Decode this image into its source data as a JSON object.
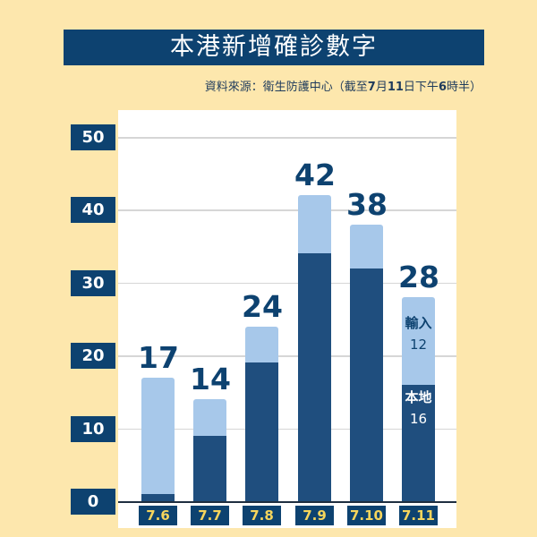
{
  "header": {
    "title": "本港新增確診數字",
    "source_prefix": "資料來源：衛生防護中心（截至",
    "source_month": "7",
    "source_m": "月",
    "source_day": "11",
    "source_d": "日下午",
    "source_hour": "6",
    "source_suffix": "時半）"
  },
  "colors": {
    "local": "#1f4e7e",
    "imported": "#a7c8ea",
    "title_bg": "#0d4270",
    "background": "#fde7ad",
    "tick_text": "#f6d55c"
  },
  "chart_data": {
    "type": "bar",
    "stacked": true,
    "title": "本港新增確診數字",
    "subtitle": "資料來源：衛生防護中心（截至7月11日下午6時半）",
    "categories": [
      "7.6",
      "7.7",
      "7.8",
      "7.9",
      "7.10",
      "7.11"
    ],
    "series": [
      {
        "name": "本地",
        "values": [
          1,
          9,
          19,
          34,
          32,
          16
        ]
      },
      {
        "name": "輸入",
        "values": [
          16,
          5,
          5,
          8,
          6,
          12
        ]
      }
    ],
    "totals": [
      17,
      14,
      24,
      42,
      38,
      28
    ],
    "y_ticks": [
      "0",
      "10",
      "20",
      "30",
      "40",
      "50"
    ],
    "ylim": [
      0,
      50
    ],
    "grid": true,
    "annotations": {
      "imported_label": "輸入",
      "imported_value": "12",
      "local_label": "本地",
      "local_value": "16"
    }
  }
}
